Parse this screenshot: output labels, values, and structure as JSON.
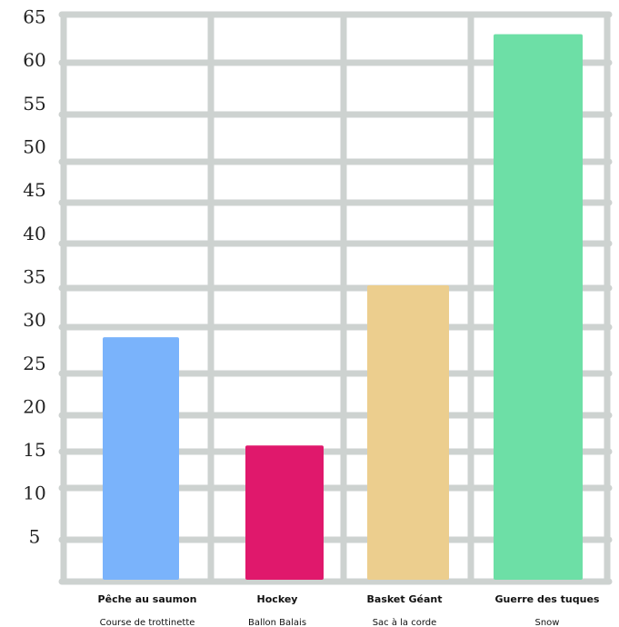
{
  "chart_data": {
    "type": "bar",
    "title": "",
    "xlabel": "",
    "ylabel": "",
    "ylim": [
      0,
      67
    ],
    "yticks": [
      "5",
      "10",
      "15",
      "20",
      "25",
      "30",
      "35",
      "40",
      "45",
      "50",
      "55",
      "60",
      "65"
    ],
    "grid": true,
    "categories": [
      {
        "line1": "Pêche au saumon",
        "line2": "Course de trottinette"
      },
      {
        "line1": "Hockey",
        "line2": "Ballon Balais"
      },
      {
        "line1": "Basket Géant",
        "line2": "Sac à la corde"
      },
      {
        "line1": "Guerre des tuques",
        "line2": "Snow"
      }
    ],
    "values": [
      28,
      15.5,
      34,
      63
    ],
    "colors": [
      "#7ab3fb",
      "#e0186c",
      "#ecce8e",
      "#6ddfa6"
    ],
    "grid_color": "#cdd2d0"
  }
}
